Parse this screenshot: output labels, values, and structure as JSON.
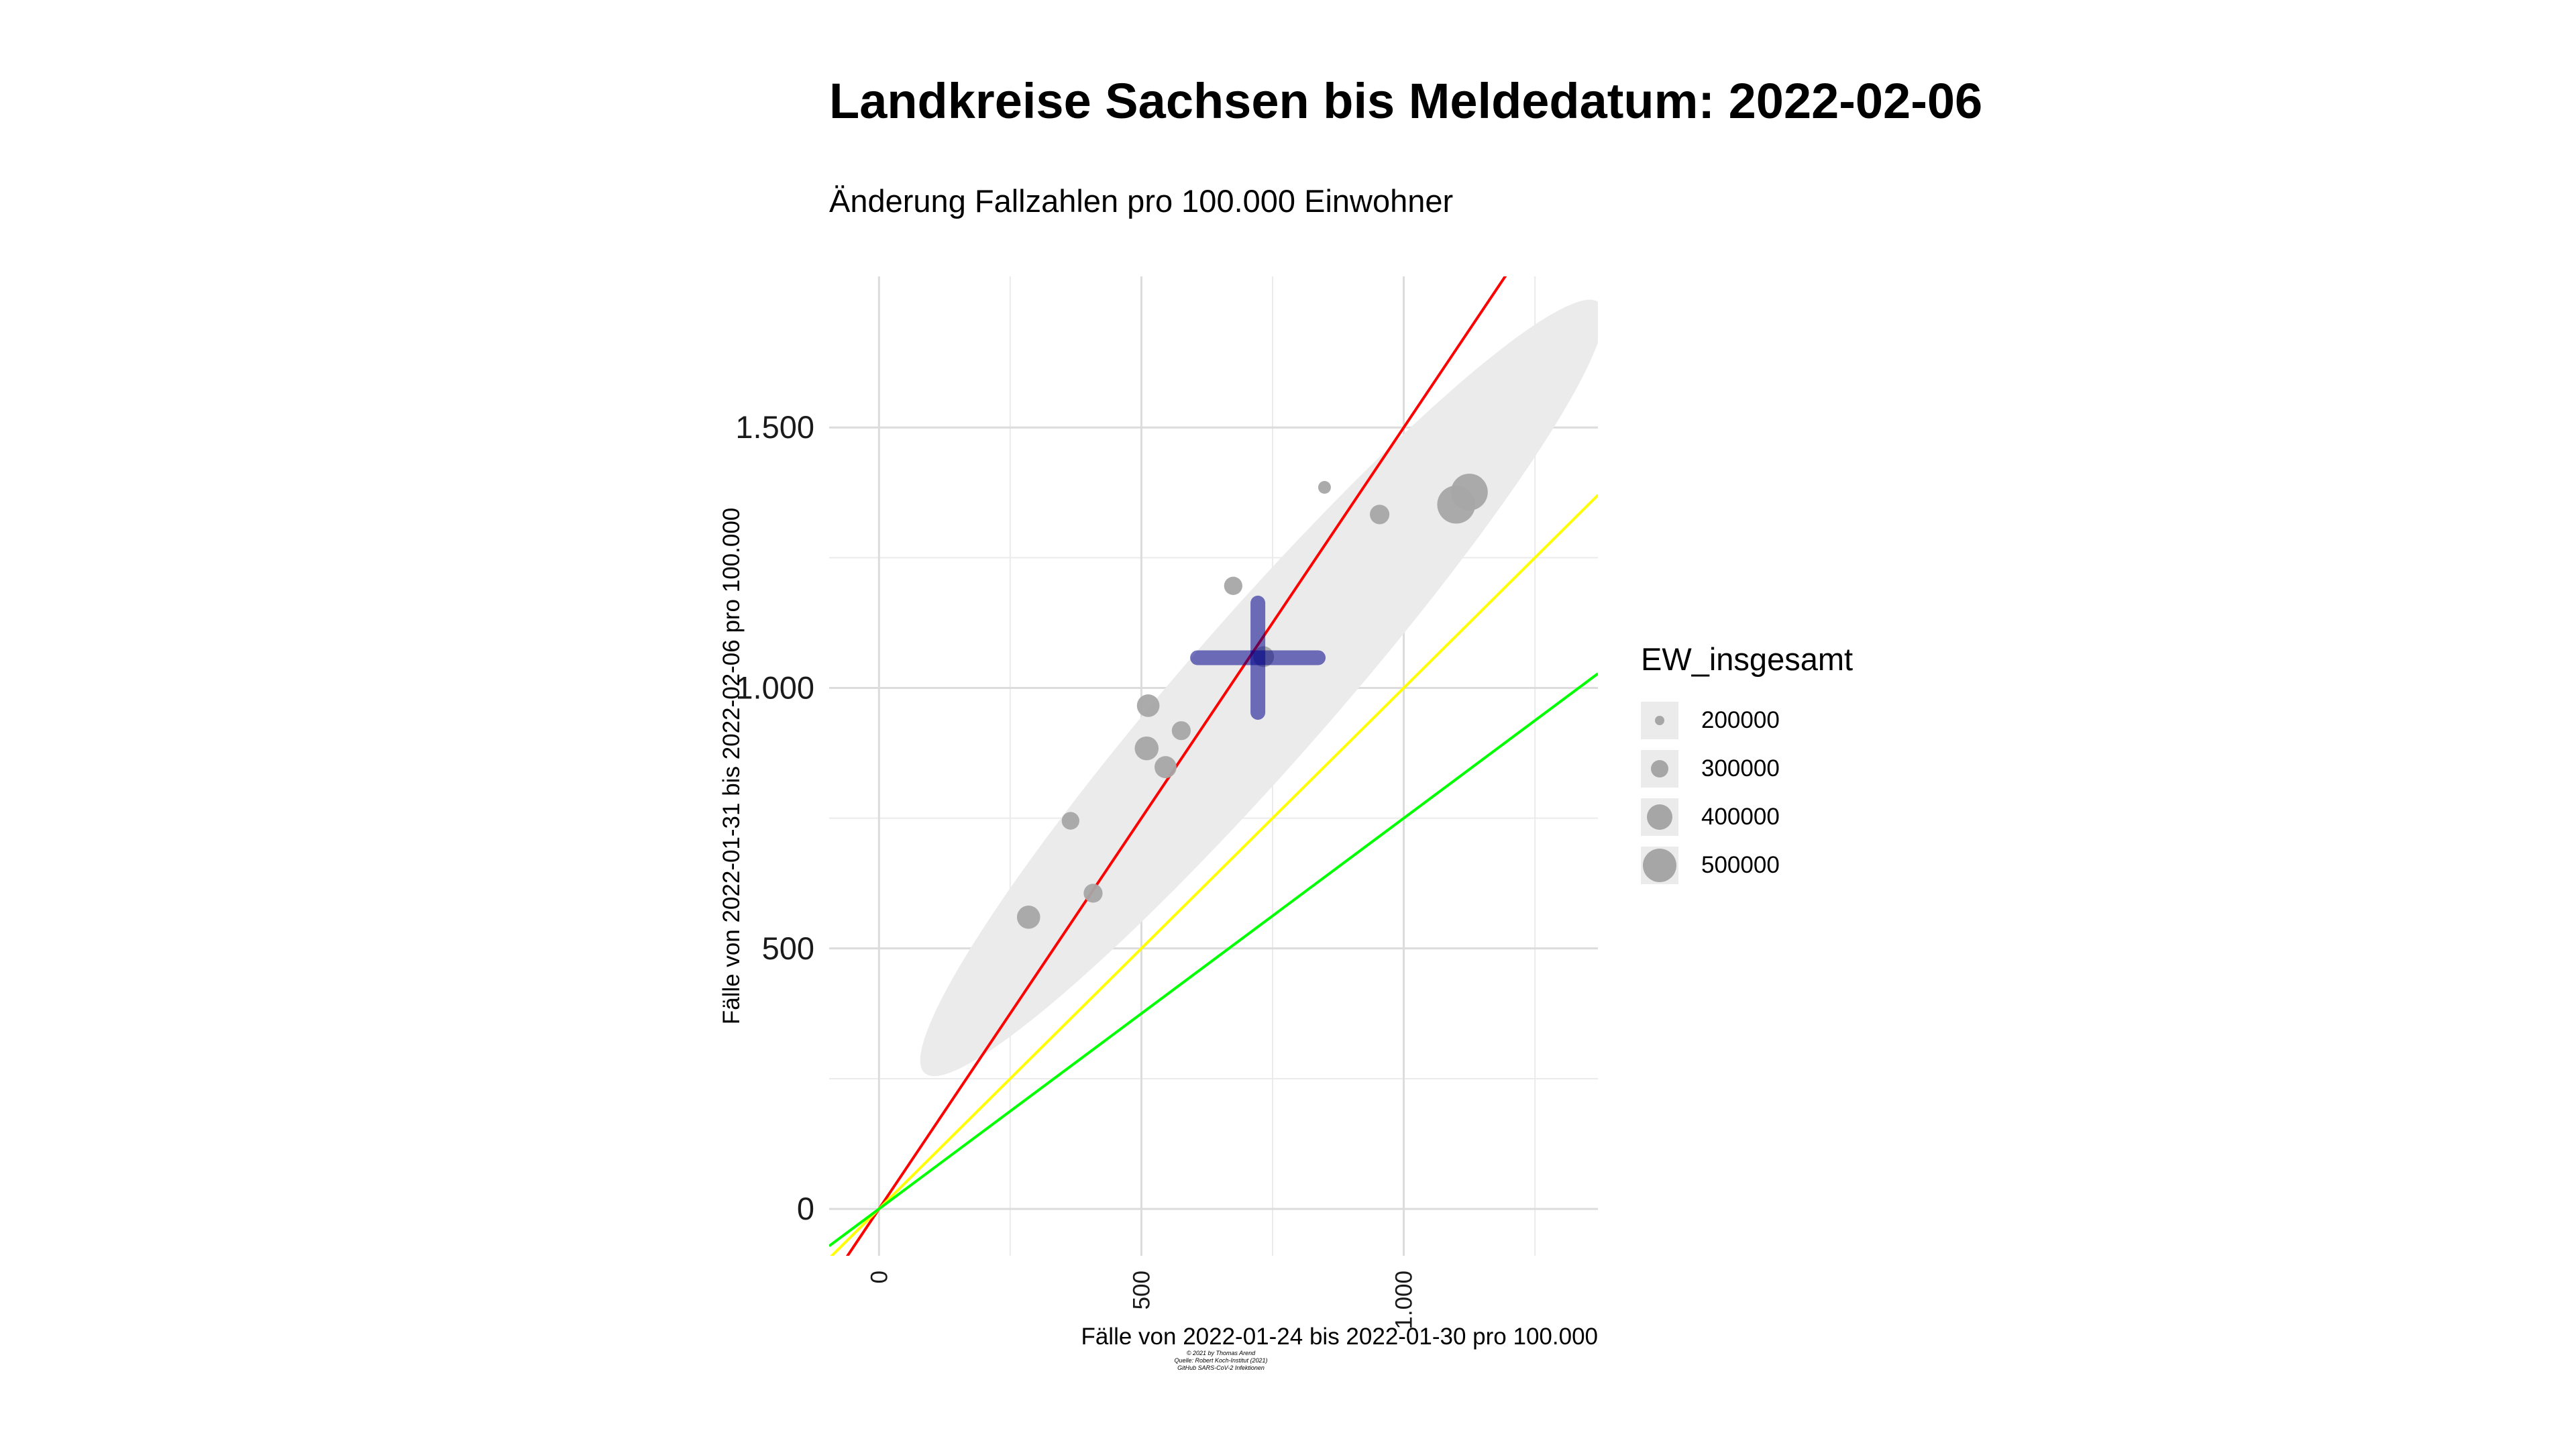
{
  "chart_data": {
    "type": "scatter",
    "title": "Landkreise Sachsen bis Meldedatum: 2022-02-06",
    "subtitle": "Änderung Fallzahlen pro 100.000 Einwohner",
    "xlabel": "Fälle von 2022-01-24 bis 2022-01-30 pro 100.000",
    "ylabel": "Fälle von 2022-01-31 bis 2022-02-06 pro 100.000",
    "xlim": [
      -95,
      1370
    ],
    "ylim": [
      -90,
      1790
    ],
    "x_ticks": [
      0,
      500,
      1000
    ],
    "x_tick_labels": [
      "0",
      "500",
      "1.000"
    ],
    "y_ticks": [
      0,
      500,
      1000,
      1500
    ],
    "y_tick_labels": [
      "0",
      "500",
      "1.000",
      "1.500"
    ],
    "grid": true,
    "points": [
      {
        "x": 285,
        "y": 560,
        "EW_insgesamt": 320000
      },
      {
        "x": 365,
        "y": 745,
        "EW_insgesamt": 230000
      },
      {
        "x": 408,
        "y": 606,
        "EW_insgesamt": 250000
      },
      {
        "x": 510,
        "y": 884,
        "EW_insgesamt": 330000
      },
      {
        "x": 513,
        "y": 966,
        "EW_insgesamt": 310000
      },
      {
        "x": 546,
        "y": 848,
        "EW_insgesamt": 300000
      },
      {
        "x": 576,
        "y": 918,
        "EW_insgesamt": 250000
      },
      {
        "x": 675,
        "y": 1196,
        "EW_insgesamt": 240000
      },
      {
        "x": 733,
        "y": 1060,
        "EW_insgesamt": 280000
      },
      {
        "x": 849,
        "y": 1385,
        "EW_insgesamt": 150000
      },
      {
        "x": 954,
        "y": 1333,
        "EW_insgesamt": 260000
      },
      {
        "x": 1100,
        "y": 1352,
        "EW_insgesamt": 560000
      },
      {
        "x": 1125,
        "y": 1376,
        "EW_insgesamt": 540000
      }
    ],
    "mean_cross": {
      "x": 722,
      "y": 1058,
      "x_halfwidth": 115,
      "y_halfwidth": 105,
      "color": "#00008b"
    },
    "reference_lines": [
      {
        "slope": 1.5,
        "color": "#ff0000"
      },
      {
        "slope": 1.0,
        "color": "#ffff00"
      },
      {
        "slope": 0.75,
        "color": "#00ff00"
      }
    ],
    "ellipse": {
      "cx": 730,
      "cy": 1000,
      "semi_major": 980,
      "semi_minor": 140,
      "angle_deg": 49,
      "color": "#ebebeb"
    },
    "point_color": "#a6a6a6",
    "legend": {
      "title": "EW_insgesamt",
      "position": "right",
      "items": [
        {
          "label": "200000",
          "value": 200000
        },
        {
          "label": "300000",
          "value": 300000
        },
        {
          "label": "400000",
          "value": 400000
        },
        {
          "label": "500000",
          "value": 500000
        }
      ]
    }
  },
  "caption": [
    "© 2021 by Thomas Arend",
    "Quelle: Robert Koch-Institut (2021)",
    "GitHub SARS-CoV-2 Infektionen"
  ]
}
